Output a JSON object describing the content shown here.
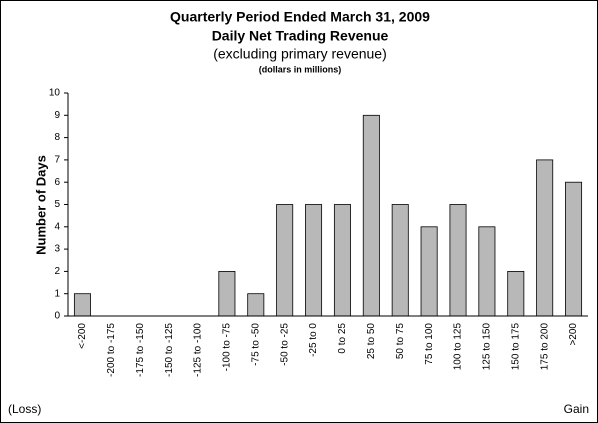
{
  "chart_data": {
    "type": "bar",
    "title": "Quarterly Period Ended March 31, 2009",
    "subtitle": "Daily Net Trading Revenue",
    "subtitle2": "(excluding primary revenue)",
    "units_note": "(dollars in millions)",
    "y_label": "Number of Days",
    "left_annotation": "(Loss)",
    "right_annotation": "Gain",
    "categories": [
      "<-200",
      "-200 to -175",
      "-175 to -150",
      "-150 to -125",
      "-125 to -100",
      "-100 to -75",
      "-75 to -50",
      "-50 to -25",
      "-25 to 0",
      "0 to 25",
      "25 to 50",
      "50 to 75",
      "75 to 100",
      "100 to 125",
      "125 to 150",
      "150 to 175",
      "175 to 200",
      ">200"
    ],
    "values": [
      1,
      0,
      0,
      0,
      0,
      2,
      1,
      5,
      5,
      5,
      9,
      5,
      4,
      5,
      4,
      2,
      7,
      6
    ],
    "color": "#b8b8b8",
    "ylim": [
      0,
      10
    ],
    "yticks": [
      0,
      1,
      2,
      3,
      4,
      5,
      6,
      7,
      8,
      9,
      10
    ],
    "grid": false
  }
}
